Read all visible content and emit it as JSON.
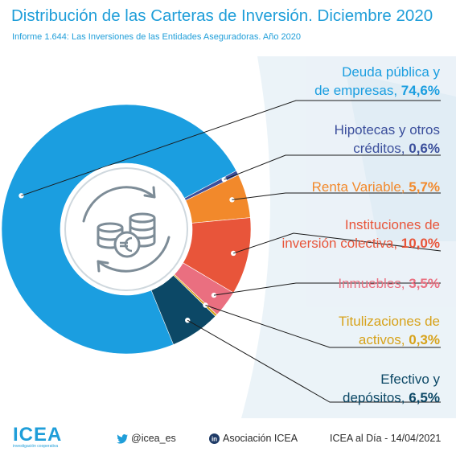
{
  "header": {
    "title": "Distribución de las Carteras de Inversión. Diciembre 2020",
    "subtitle": "Informe 1.644: Las Inversiones de las Entidades Aseguradoras. Año 2020"
  },
  "chart_data": {
    "type": "pie",
    "variant": "donut",
    "slices": [
      {
        "label": "Deuda pública y de empresas",
        "value": 74.6,
        "value_label": "74,6%",
        "color": "#1b9ee0",
        "label_color": "#1b9ee0"
      },
      {
        "label": "Hipotecas y otros créditos",
        "value": 0.6,
        "value_label": "0,6%",
        "color": "#3b4f9c",
        "label_color": "#3b4f9c"
      },
      {
        "label": "Renta Variable",
        "value": 5.7,
        "value_label": "5,7%",
        "color": "#f2892b",
        "label_color": "#f2892b"
      },
      {
        "label": "Instituciones de inversión colectiva",
        "value": 10.0,
        "value_label": "10,0%",
        "color": "#e8553a",
        "label_color": "#e8553a"
      },
      {
        "label": "Inmuebles",
        "value": 3.5,
        "value_label": "3,5%",
        "color": "#ea6f80",
        "label_color": "#ea6f80"
      },
      {
        "label": "Titulizaciones de activos",
        "value": 0.3,
        "value_label": "0,3%",
        "color": "#d7a21a",
        "label_color": "#d7a21a"
      },
      {
        "label": "Efectivo y depósitos",
        "value": 6.5,
        "value_label": "6,5%",
        "color": "#0c4866",
        "label_color": "#0c4866"
      }
    ],
    "extra_slice_color": "#9fd3e8"
  },
  "labels": [
    {
      "line1": "Deuda pública y",
      "line2_prefix": "de empresas, ",
      "value": "74,6%"
    },
    {
      "line1": "Hipotecas y otros",
      "line2_prefix": "créditos, ",
      "value": "0,6%"
    },
    {
      "line1": "",
      "line2_prefix": "Renta Variable, ",
      "value": "5,7%"
    },
    {
      "line1": "Instituciones de",
      "line2_prefix": "inversión colectiva, ",
      "value": "10,0%"
    },
    {
      "line1": "",
      "line2_prefix": "Inmuebles, ",
      "value": "3,5%"
    },
    {
      "line1": "Titulizaciones de",
      "line2_prefix": "activos, ",
      "value": "0,3%"
    },
    {
      "line1": "Efectivo y",
      "line2_prefix": "depósitos, ",
      "value": "6,5%"
    }
  ],
  "footer": {
    "logo": "ICEA",
    "logo_tagline": "investigación cooperativa",
    "twitter": "@icea_es",
    "linkedin": "Asociación ICEA",
    "date": "ICEA al Día - 14/04/2021"
  },
  "colors": {
    "brand": "#1f9ed9",
    "text_dark": "#3a4a8c"
  },
  "icons": [
    "coins-euro-icon",
    "refresh-arrows-icon",
    "twitter-icon",
    "linkedin-icon"
  ]
}
